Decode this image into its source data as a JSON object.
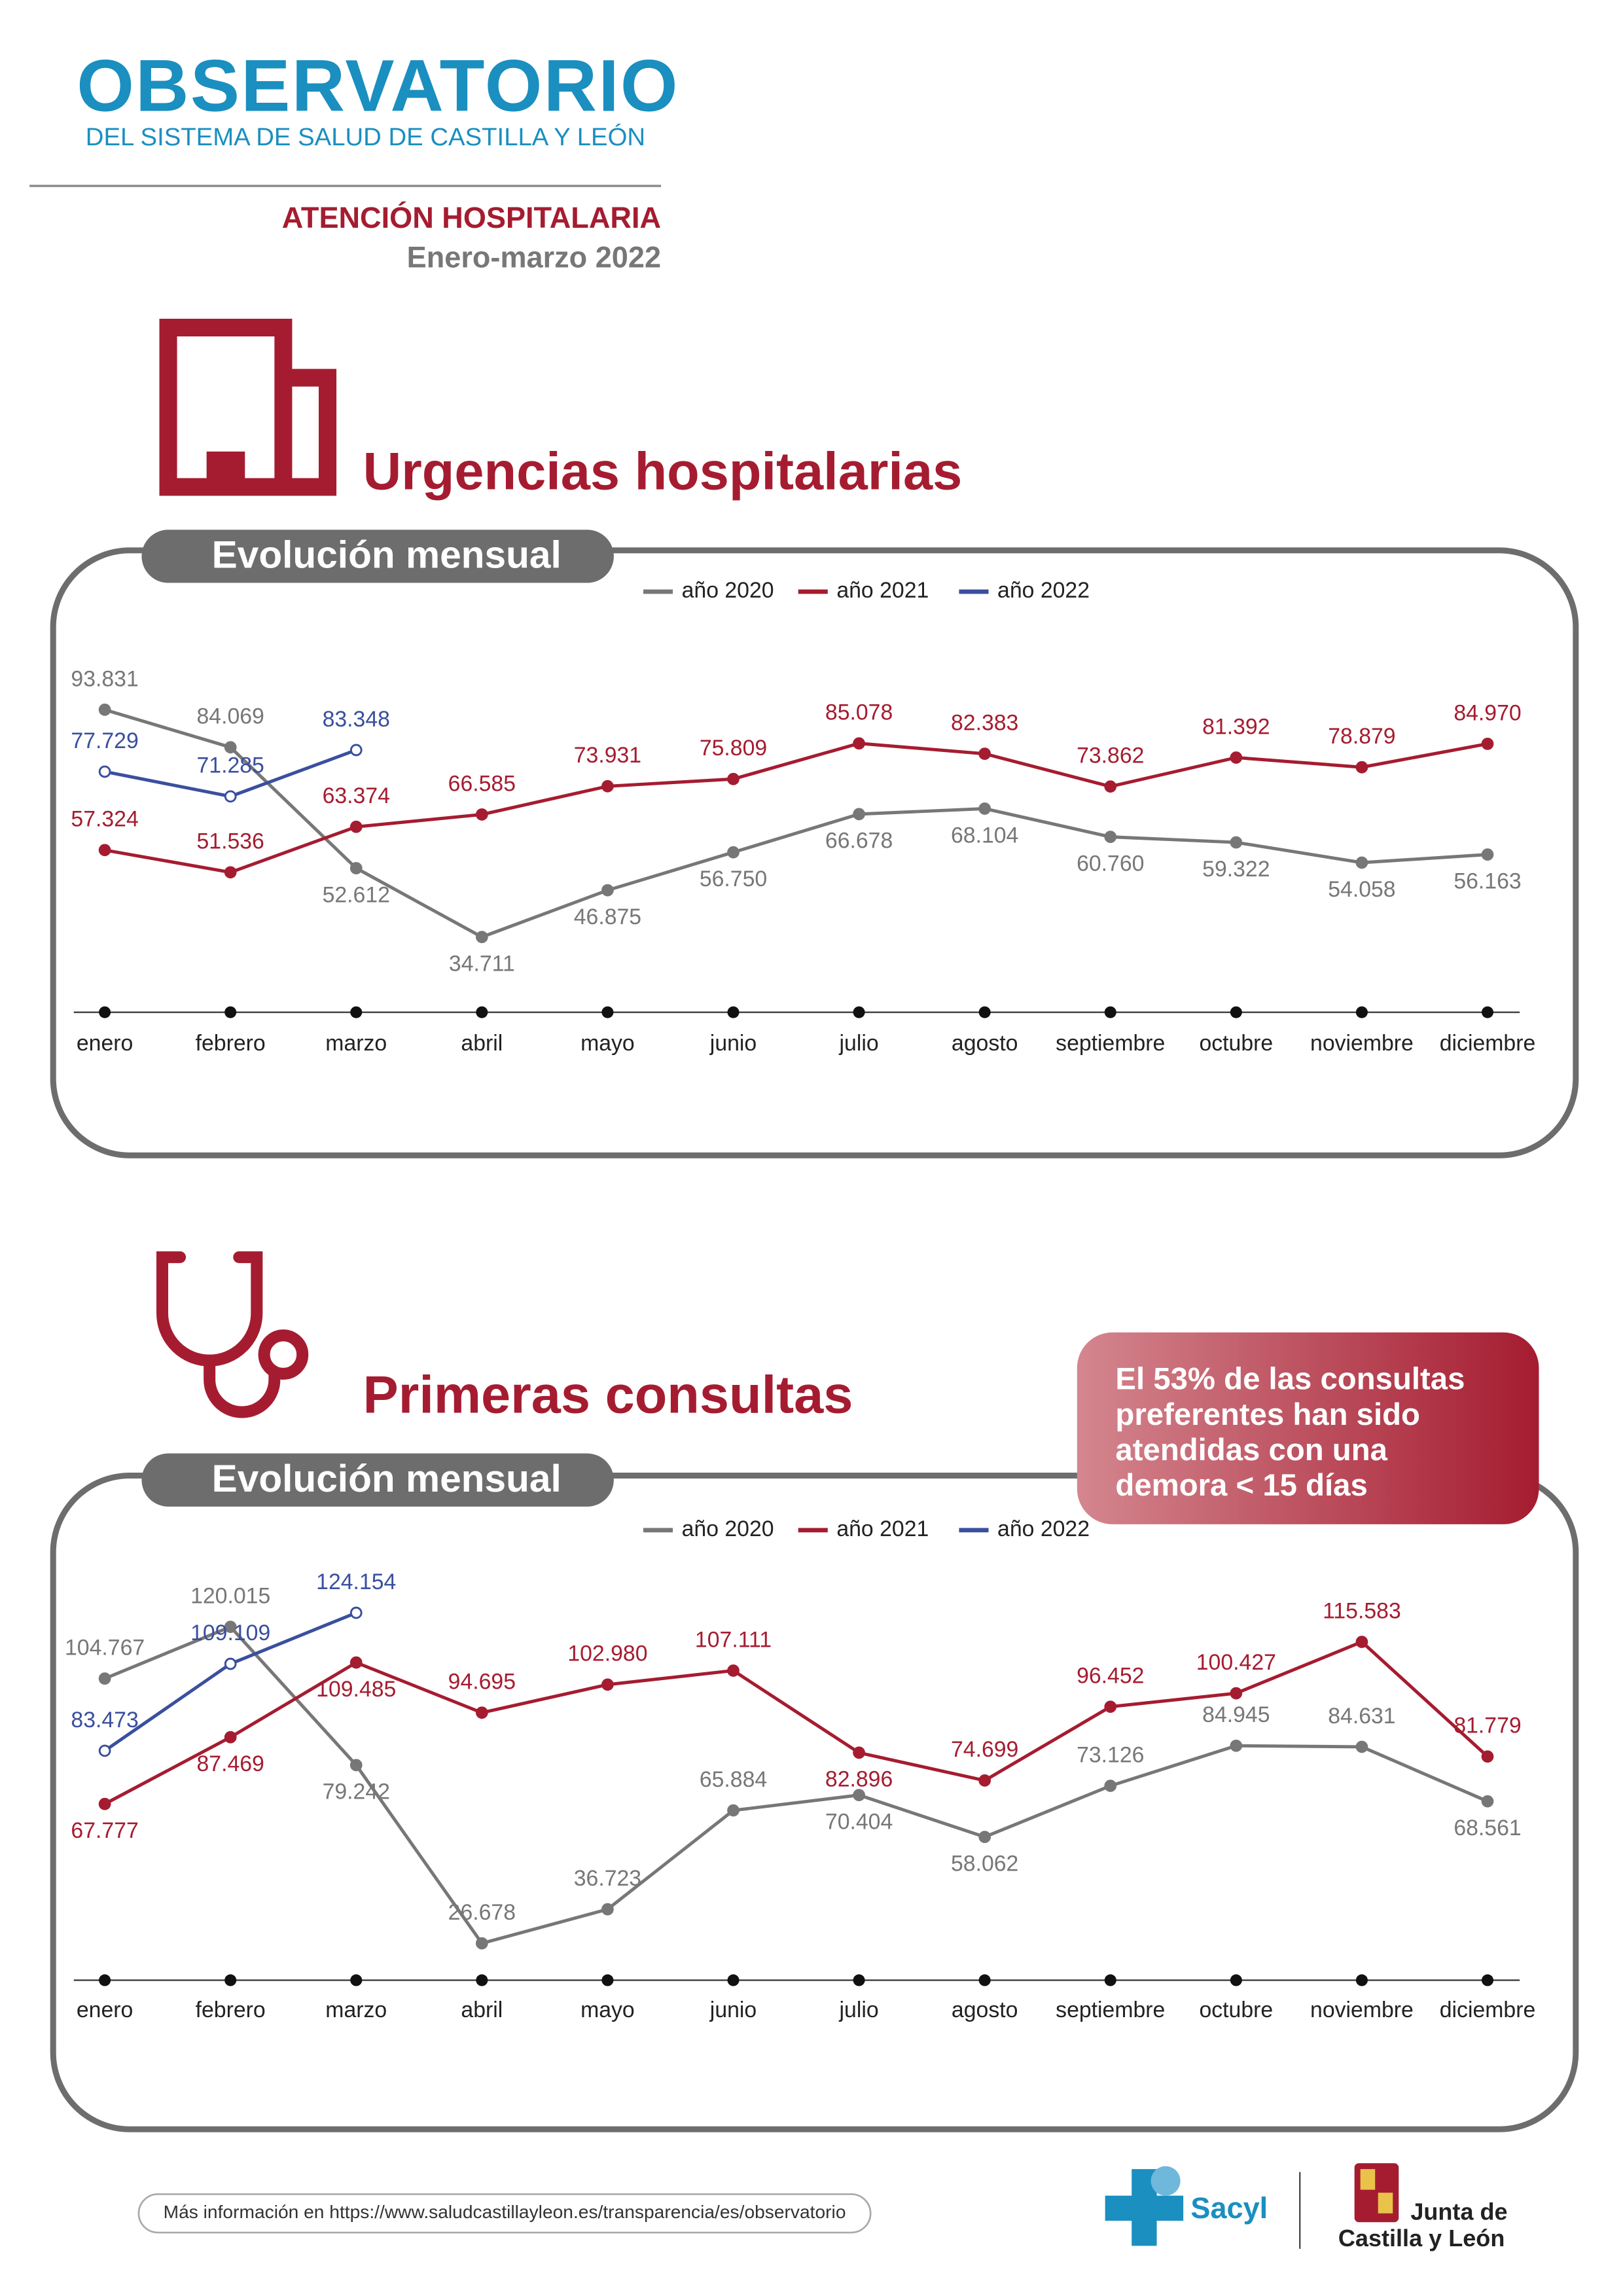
{
  "header": {
    "logo": "OBSERVATORIO",
    "logo_subtitle": "DEL SISTEMA DE SALUD DE CASTILLA Y LEÓN",
    "section": "ATENCIÓN HOSPITALARIA",
    "period": "Enero-marzo 2022"
  },
  "callout": [
    "El 53% de las consultas",
    "preferentes han sido",
    "atendidas con una",
    "demora < 15 días"
  ],
  "chart_data": [
    {
      "type": "line",
      "title": "Urgencias hospitalarias",
      "subtitle": "Evolución mensual",
      "categories": [
        "enero",
        "febrero",
        "marzo",
        "abril",
        "mayo",
        "junio",
        "julio",
        "agosto",
        "septiembre",
        "octubre",
        "noviembre",
        "diciembre"
      ],
      "series": [
        {
          "name": "año 2020",
          "color": "#777777",
          "values": [
            93831,
            84069,
            52612,
            34711,
            46875,
            56750,
            66678,
            68104,
            60760,
            59322,
            54058,
            56163
          ],
          "value_labels": [
            "93.831",
            "84.069",
            "52.612",
            "34.711",
            "46.875",
            "56.750",
            "66.678",
            "68.104",
            "60.760",
            "59.322",
            "54.058",
            "56.163"
          ]
        },
        {
          "name": "año 2021",
          "color": "#a51c30",
          "values": [
            57324,
            51536,
            63374,
            66585,
            73931,
            75809,
            85078,
            82383,
            73862,
            81392,
            78879,
            84970
          ],
          "value_labels": [
            "57.324",
            "51.536",
            "63.374",
            "66.585",
            "73.931",
            "75.809",
            "85.078",
            "82.383",
            "73.862",
            "81.392",
            "78.879",
            "84.970"
          ]
        },
        {
          "name": "año 2022",
          "color": "#3a4f9e",
          "values": [
            77729,
            71285,
            83348,
            null,
            null,
            null,
            null,
            null,
            null,
            null,
            null,
            null
          ],
          "value_labels": [
            "77.729",
            "71.285",
            "83.348",
            null,
            null,
            null,
            null,
            null,
            null,
            null,
            null,
            null
          ]
        }
      ]
    },
    {
      "type": "line",
      "title": "Primeras consultas",
      "subtitle": "Evolución mensual",
      "categories": [
        "enero",
        "febrero",
        "marzo",
        "abril",
        "mayo",
        "junio",
        "julio",
        "agosto",
        "septiembre",
        "octubre",
        "noviembre",
        "diciembre"
      ],
      "series": [
        {
          "name": "año 2020",
          "color": "#777777",
          "values": [
            104767,
            120015,
            79242,
            26678,
            36723,
            65884,
            70404,
            58062,
            73126,
            84945,
            84631,
            68561
          ],
          "value_labels": [
            "104.767",
            "120.015",
            "79.242",
            "26.678",
            "36.723",
            "65.884",
            "70.404",
            "58.062",
            "73.126",
            "84.945",
            "84.631",
            "68.561"
          ]
        },
        {
          "name": "año 2021",
          "color": "#a51c30",
          "values": [
            67777,
            87469,
            109485,
            94695,
            102980,
            107111,
            82896,
            74699,
            96452,
            100427,
            115583,
            81779
          ],
          "value_labels": [
            "67.777",
            "87.469",
            "109.485",
            "94.695",
            "102.980",
            "107.111",
            "82.896",
            "74.699",
            "96.452",
            "100.427",
            "115.583",
            "81.779"
          ]
        },
        {
          "name": "año 2022",
          "color": "#3a4f9e",
          "values": [
            83473,
            109109,
            124154,
            null,
            null,
            null,
            null,
            null,
            null,
            null,
            null,
            null
          ],
          "value_labels": [
            "83.473",
            "109.109",
            "124.154",
            null,
            null,
            null,
            null,
            null,
            null,
            null,
            null,
            null
          ]
        }
      ]
    }
  ],
  "footer": {
    "info": "Más información en https://www.saludcastillayleon.es/transparencia/es/observatorio",
    "sacyl": "Sacyl",
    "junta": [
      "Junta de",
      "Castilla y León"
    ]
  }
}
